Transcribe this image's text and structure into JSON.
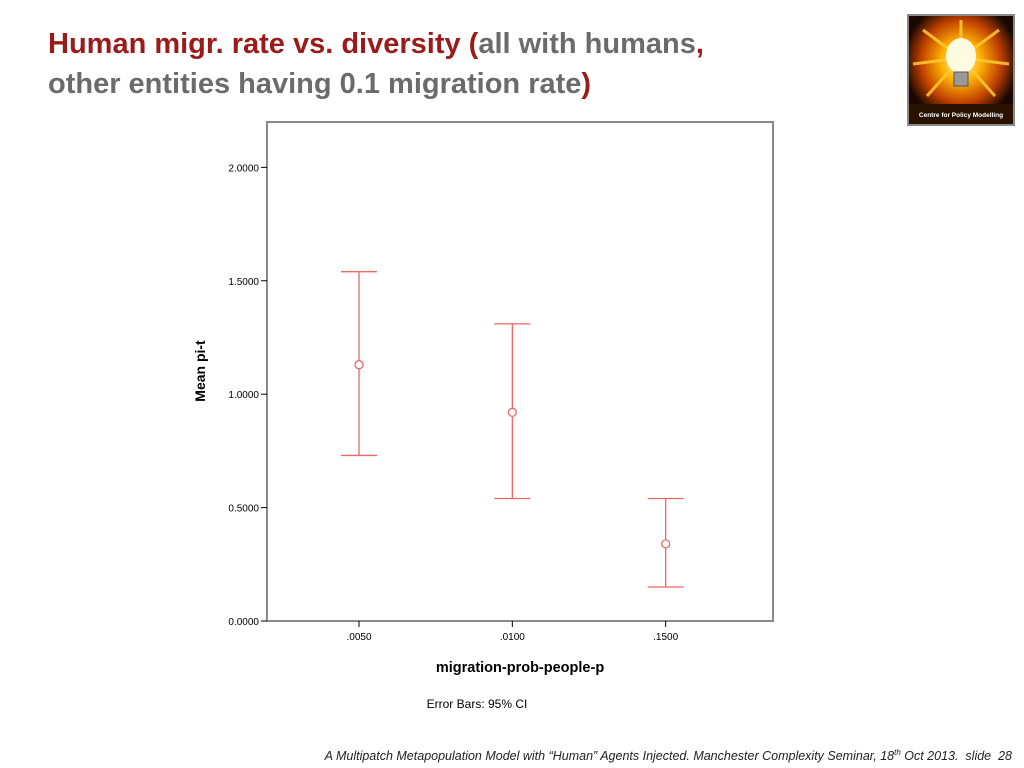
{
  "slide": {
    "title_part1": "Human migr. rate vs. diversity (",
    "title_part2": "all with humans",
    "title_part3": ",",
    "title_part4": "other entities having 0.1 migration rate",
    "title_part5": ")",
    "logo_text": "Centre for Policy Modelling",
    "footer_text": "A Multipatch Metapopulation Model with “Human” Agents Injected. Manchester Complexity Seminar, 18",
    "footer_sup": "th",
    "footer_text2": " Oct 2013.",
    "footer_slide_label": "slide",
    "footer_slide_number": "28",
    "colors": {
      "title_red": "#9b1b1b",
      "title_grey": "#6b6b6b",
      "series": "#ee6666"
    }
  },
  "chart_data": {
    "type": "scatter",
    "subtype": "error-bar",
    "categories": [
      ".0050",
      ".0100",
      ".1500"
    ],
    "series": [
      {
        "mean": [
          1.13,
          0.92,
          0.34
        ],
        "ci_low": [
          0.73,
          0.54,
          0.15
        ],
        "ci_high": [
          1.54,
          1.31,
          0.54
        ]
      }
    ],
    "xlabel": "migration-prob-people-p",
    "ylabel": "Mean pi-t",
    "ylim": [
      0,
      2.2
    ],
    "yticks": [
      "0.0000",
      "0.5000",
      "1.0000",
      "1.5000",
      "2.0000"
    ],
    "ytick_values": [
      0,
      0.5,
      1.0,
      1.5,
      2.0
    ],
    "note": "Error Bars: 95% CI",
    "grid": false
  }
}
